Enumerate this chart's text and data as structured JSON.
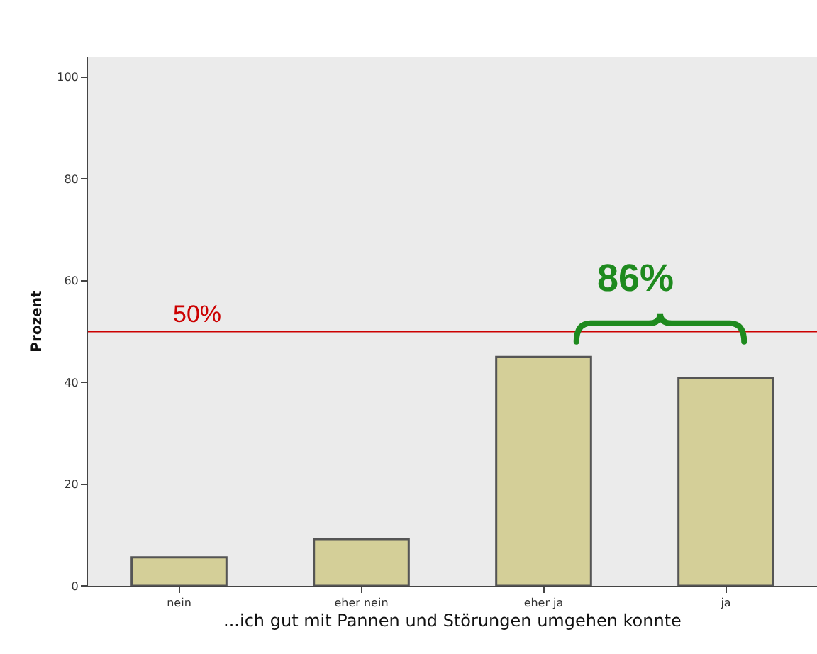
{
  "chart_data": {
    "type": "bar",
    "xlabel": "...ich gut mit Pannen und Störungen umgehen konnte",
    "ylabel": "Prozent",
    "categories": [
      "nein",
      "eher nein",
      "eher ja",
      "ja"
    ],
    "values": [
      5.6,
      9.2,
      45,
      40.8
    ],
    "color": "#d4cf98",
    "ylim": [
      0,
      104
    ],
    "yticks": [
      0,
      20,
      40,
      60,
      80,
      100
    ],
    "grid": false,
    "ref_lines": [
      {
        "axis": "y",
        "value": 50,
        "label": "50%",
        "color": "#cc0000"
      }
    ],
    "annotations": [
      "86%"
    ]
  }
}
